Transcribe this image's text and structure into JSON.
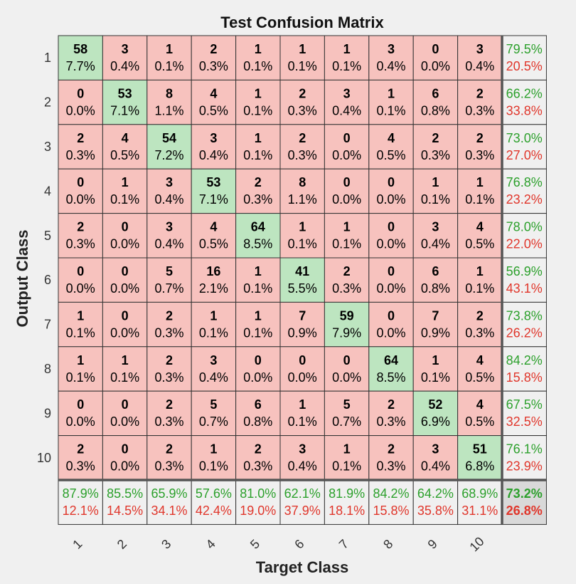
{
  "chart_data": {
    "type": "heatmap",
    "title": "Test Confusion Matrix",
    "xlabel": "Target Class",
    "ylabel": "Output Class",
    "classes": [
      "1",
      "2",
      "3",
      "4",
      "5",
      "6",
      "7",
      "8",
      "9",
      "10"
    ],
    "counts": [
      [
        "58",
        "3",
        "1",
        "2",
        "1",
        "1",
        "1",
        "3",
        "0",
        "3"
      ],
      [
        "0",
        "53",
        "8",
        "4",
        "1",
        "2",
        "3",
        "1",
        "6",
        "2"
      ],
      [
        "2",
        "4",
        "54",
        "3",
        "1",
        "2",
        "0",
        "4",
        "2",
        "2"
      ],
      [
        "0",
        "1",
        "3",
        "53",
        "2",
        "8",
        "0",
        "0",
        "1",
        "1"
      ],
      [
        "2",
        "0",
        "3",
        "4",
        "64",
        "1",
        "1",
        "0",
        "3",
        "4"
      ],
      [
        "0",
        "0",
        "5",
        "16",
        "1",
        "41",
        "2",
        "0",
        "6",
        "1"
      ],
      [
        "1",
        "0",
        "2",
        "1",
        "1",
        "7",
        "59",
        "0",
        "7",
        "2"
      ],
      [
        "1",
        "1",
        "2",
        "3",
        "0",
        "0",
        "0",
        "64",
        "1",
        "4"
      ],
      [
        "0",
        "0",
        "2",
        "5",
        "6",
        "1",
        "5",
        "2",
        "52",
        "4"
      ],
      [
        "2",
        "0",
        "2",
        "1",
        "2",
        "3",
        "1",
        "2",
        "3",
        "51"
      ]
    ],
    "percents": [
      [
        "7.7%",
        "0.4%",
        "0.1%",
        "0.3%",
        "0.1%",
        "0.1%",
        "0.1%",
        "0.4%",
        "0.0%",
        "0.4%"
      ],
      [
        "0.0%",
        "7.1%",
        "1.1%",
        "0.5%",
        "0.1%",
        "0.3%",
        "0.4%",
        "0.1%",
        "0.8%",
        "0.3%"
      ],
      [
        "0.3%",
        "0.5%",
        "7.2%",
        "0.4%",
        "0.1%",
        "0.3%",
        "0.0%",
        "0.5%",
        "0.3%",
        "0.3%"
      ],
      [
        "0.0%",
        "0.1%",
        "0.4%",
        "7.1%",
        "0.3%",
        "1.1%",
        "0.0%",
        "0.0%",
        "0.1%",
        "0.1%"
      ],
      [
        "0.3%",
        "0.0%",
        "0.4%",
        "0.5%",
        "8.5%",
        "0.1%",
        "0.1%",
        "0.0%",
        "0.4%",
        "0.5%"
      ],
      [
        "0.0%",
        "0.0%",
        "0.7%",
        "2.1%",
        "0.1%",
        "5.5%",
        "0.3%",
        "0.0%",
        "0.8%",
        "0.1%"
      ],
      [
        "0.1%",
        "0.0%",
        "0.3%",
        "0.1%",
        "0.1%",
        "0.9%",
        "7.9%",
        "0.0%",
        "0.9%",
        "0.3%"
      ],
      [
        "0.1%",
        "0.1%",
        "0.3%",
        "0.4%",
        "0.0%",
        "0.0%",
        "0.0%",
        "8.5%",
        "0.1%",
        "0.5%"
      ],
      [
        "0.0%",
        "0.0%",
        "0.3%",
        "0.7%",
        "0.8%",
        "0.1%",
        "0.7%",
        "0.3%",
        "6.9%",
        "0.5%"
      ],
      [
        "0.3%",
        "0.0%",
        "0.3%",
        "0.1%",
        "0.3%",
        "0.4%",
        "0.1%",
        "0.3%",
        "0.4%",
        "6.8%"
      ]
    ],
    "row_summary": [
      [
        "79.5%",
        "20.5%"
      ],
      [
        "66.2%",
        "33.8%"
      ],
      [
        "73.0%",
        "27.0%"
      ],
      [
        "76.8%",
        "23.2%"
      ],
      [
        "78.0%",
        "22.0%"
      ],
      [
        "56.9%",
        "43.1%"
      ],
      [
        "73.8%",
        "26.2%"
      ],
      [
        "84.2%",
        "15.8%"
      ],
      [
        "67.5%",
        "32.5%"
      ],
      [
        "76.1%",
        "23.9%"
      ]
    ],
    "col_summary": [
      [
        "87.9%",
        "12.1%"
      ],
      [
        "85.5%",
        "14.5%"
      ],
      [
        "65.9%",
        "34.1%"
      ],
      [
        "57.6%",
        "42.4%"
      ],
      [
        "81.0%",
        "19.0%"
      ],
      [
        "62.1%",
        "37.9%"
      ],
      [
        "81.9%",
        "18.1%"
      ],
      [
        "84.2%",
        "15.8%"
      ],
      [
        "64.2%",
        "35.8%"
      ],
      [
        "68.9%",
        "31.1%"
      ]
    ],
    "overall": [
      "73.2%",
      "26.8%"
    ],
    "colors": {
      "correct": "#bde5c0",
      "incorrect": "#f7c2be",
      "summary": "#f0f0f0",
      "overall": "#d9d9d9",
      "good_text": "#2ca02c",
      "bad_text": "#e0362b",
      "border": "#333333",
      "background": "#f0f0f0"
    }
  }
}
